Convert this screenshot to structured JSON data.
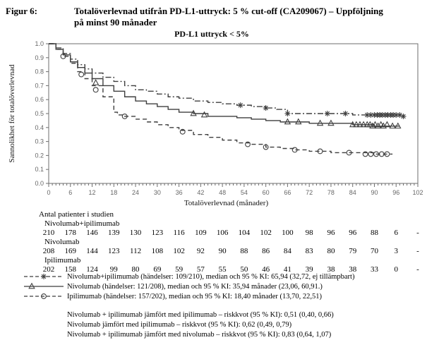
{
  "figure": {
    "label": "Figur 6:",
    "title_line1": "Totalöverlevnad utifrån PD-L1-uttryck: 5 % cut-off (CA209067) – Uppföljning",
    "title_line2": "på minst 90 månader"
  },
  "chart_data": {
    "type": "line",
    "subtype": "kaplan-meier-step",
    "title": "PD-L1 uttryck < 5%",
    "xlabel": "Totalöverlevnad (månader)",
    "ylabel": "Sannolikhet för totalöverlevnad",
    "xlim": [
      0,
      102
    ],
    "ylim": [
      0.0,
      1.0
    ],
    "xticks": [
      0,
      6,
      12,
      18,
      24,
      30,
      36,
      42,
      48,
      54,
      60,
      66,
      72,
      78,
      84,
      90,
      96,
      102
    ],
    "yticks": [
      0.0,
      0.1,
      0.2,
      0.3,
      0.4,
      0.5,
      0.6,
      0.7,
      0.8,
      0.9,
      1.0
    ],
    "grid": false,
    "legend_position": "below",
    "series": [
      {
        "name": "Nivolumab+ipilimumab",
        "line": "dashdot",
        "marker": "asterisk",
        "x": [
          0,
          2,
          4,
          6,
          8,
          10,
          12,
          15,
          18,
          21,
          24,
          27,
          30,
          33,
          36,
          40,
          44,
          48,
          52,
          56,
          60,
          63,
          66,
          72,
          78,
          84,
          90,
          98
        ],
        "y": [
          1.0,
          0.97,
          0.93,
          0.89,
          0.85,
          0.82,
          0.79,
          0.76,
          0.73,
          0.7,
          0.67,
          0.66,
          0.64,
          0.62,
          0.61,
          0.59,
          0.58,
          0.57,
          0.56,
          0.55,
          0.54,
          0.53,
          0.5,
          0.5,
          0.5,
          0.49,
          0.49,
          0.48
        ],
        "censors": [
          [
            53,
            0.56
          ],
          [
            60,
            0.54
          ],
          [
            66,
            0.5
          ],
          [
            77,
            0.5
          ],
          [
            82,
            0.5
          ],
          [
            88,
            0.49
          ],
          [
            89,
            0.49
          ],
          [
            90,
            0.49
          ],
          [
            90.8,
            0.49
          ],
          [
            91.5,
            0.49
          ],
          [
            92.2,
            0.49
          ],
          [
            93,
            0.49
          ],
          [
            93.7,
            0.49
          ],
          [
            94.5,
            0.49
          ],
          [
            95.2,
            0.49
          ],
          [
            96,
            0.49
          ],
          [
            97,
            0.49
          ],
          [
            98,
            0.48
          ]
        ]
      },
      {
        "name": "Nivolumab",
        "line": "solid",
        "marker": "triangle",
        "x": [
          0,
          2,
          4,
          6,
          8,
          10,
          12,
          15,
          18,
          21,
          24,
          27,
          30,
          33,
          36,
          40,
          44,
          48,
          52,
          56,
          60,
          64,
          68,
          72,
          78,
          84,
          90,
          97
        ],
        "y": [
          1.0,
          0.96,
          0.92,
          0.87,
          0.83,
          0.79,
          0.75,
          0.7,
          0.66,
          0.62,
          0.59,
          0.57,
          0.55,
          0.53,
          0.51,
          0.5,
          0.48,
          0.48,
          0.47,
          0.46,
          0.45,
          0.44,
          0.44,
          0.43,
          0.43,
          0.42,
          0.41,
          0.41
        ],
        "censors": [
          [
            13,
            0.72
          ],
          [
            40,
            0.5
          ],
          [
            43,
            0.49
          ],
          [
            66,
            0.44
          ],
          [
            69,
            0.44
          ],
          [
            75,
            0.43
          ],
          [
            78,
            0.43
          ],
          [
            84,
            0.42
          ],
          [
            85,
            0.42
          ],
          [
            86,
            0.42
          ],
          [
            87,
            0.42
          ],
          [
            88,
            0.42
          ],
          [
            88.8,
            0.42
          ],
          [
            89.5,
            0.41
          ],
          [
            90.2,
            0.42
          ],
          [
            91,
            0.41
          ],
          [
            91.8,
            0.42
          ],
          [
            92.5,
            0.41
          ],
          [
            93.5,
            0.42
          ],
          [
            95,
            0.41
          ],
          [
            96.5,
            0.41
          ]
        ]
      },
      {
        "name": "Ipilimumab",
        "line": "dashed",
        "marker": "circle",
        "x": [
          0,
          2,
          4,
          6,
          8,
          10,
          12,
          15,
          18,
          19,
          21,
          24,
          27,
          30,
          33,
          36,
          40,
          44,
          48,
          52,
          56,
          60,
          64,
          68,
          72,
          78,
          84,
          90,
          95
        ],
        "y": [
          1.0,
          0.96,
          0.91,
          0.86,
          0.8,
          0.75,
          0.7,
          0.62,
          0.51,
          0.49,
          0.48,
          0.46,
          0.44,
          0.42,
          0.4,
          0.38,
          0.35,
          0.33,
          0.31,
          0.29,
          0.28,
          0.26,
          0.25,
          0.24,
          0.23,
          0.22,
          0.22,
          0.21,
          0.21
        ],
        "censors": [
          [
            4,
            0.91
          ],
          [
            9,
            0.78
          ],
          [
            13,
            0.67
          ],
          [
            21,
            0.48
          ],
          [
            37,
            0.37
          ],
          [
            55,
            0.28
          ],
          [
            60,
            0.26
          ],
          [
            68,
            0.24
          ],
          [
            75,
            0.23
          ],
          [
            83,
            0.22
          ],
          [
            87.5,
            0.21
          ],
          [
            89,
            0.21
          ],
          [
            90.5,
            0.21
          ],
          [
            92,
            0.21
          ],
          [
            93.5,
            0.21
          ]
        ]
      }
    ]
  },
  "risk_table": {
    "title": "Antal patienter i studien",
    "groups": [
      {
        "label": "Nivolumab+ipilimumab",
        "counts": [
          "210",
          "178",
          "146",
          "139",
          "130",
          "123",
          "116",
          "109",
          "106",
          "104",
          "102",
          "100",
          "98",
          "96",
          "96",
          "88",
          "6",
          "-"
        ]
      },
      {
        "label": "Nivolumab",
        "counts": [
          "208",
          "169",
          "144",
          "123",
          "112",
          "108",
          "102",
          "92",
          "90",
          "88",
          "86",
          "84",
          "83",
          "80",
          "79",
          "70",
          "3",
          "-"
        ]
      },
      {
        "label": "Ipilimumab",
        "counts": [
          "202",
          "158",
          "124",
          "99",
          "80",
          "69",
          "59",
          "57",
          "55",
          "50",
          "46",
          "41",
          "39",
          "38",
          "38",
          "33",
          "0",
          "-"
        ]
      }
    ]
  },
  "legend": [
    {
      "marker": "dashdot-asterisk",
      "text": "Nivolumab+ipilimumab (händelser: 109/210), median och 95 % KI: 65,94 (32,72, ej tillämpbart)"
    },
    {
      "marker": "solid-triangle",
      "text": "Nivolumab (händelser: 121/208), median och 95 % KI: 35,94 månader (23,06, 60,91.)"
    },
    {
      "marker": "dashed-circle",
      "text": "Ipilimumab (händelser: 157/202), median och 95 % KI: 18,40 månader (13,70, 22,51)"
    }
  ],
  "comparisons": [
    "Nivolumab + ipilimumab jämfört med ipilimumab – riskkvot (95 % KI): 0,51 (0,40, 0,66)",
    "Nivolumab jämfört med ipilimumab – riskkvot (95 % KI): 0,62 (0,49, 0,79)",
    "Nivolumab + ipilimumab jämfört med nivolumab – riskkvot (95 % KI): 0,83 (0,64, 1,07)"
  ],
  "colors": {
    "curve": "#3f3f3f",
    "axis": "#6e6e6e",
    "tick_text": "#666666",
    "text": "#000000"
  }
}
